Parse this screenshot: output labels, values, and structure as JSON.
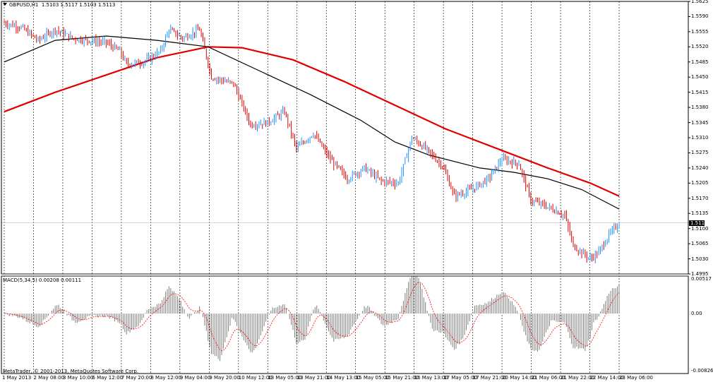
{
  "header": {
    "symbol": "GBPUSD,H1",
    "ohlc": "1.5103 1.5117 1.5103 1.5113"
  },
  "current_price": "1.5113",
  "price_axis": [
    "1.5625",
    "1.5590",
    "1.5555",
    "1.5520",
    "1.5485",
    "1.5450",
    "1.5415",
    "1.5380",
    "1.5345",
    "1.5310",
    "1.5275",
    "1.5240",
    "1.5205",
    "1.5170",
    "1.5135",
    "1.5100",
    "1.5065",
    "1.5030",
    "1.4995"
  ],
  "time_axis": [
    "1 May 2013",
    "2 May 08:00",
    "3 May 10:00",
    "6 May 12:00",
    "7 May 20:00",
    "8 May 12:00",
    "9 May 04:00",
    "9 May 20:00",
    "10 May 12:00",
    "13 May 05:00",
    "13 May 21:00",
    "14 May 13:00",
    "15 May 05:00",
    "15 May 21:00",
    "16 May 13:00",
    "17 May 05:00",
    "17 May 21:00",
    "20 May 14:00",
    "21 May 06:00",
    "21 May 22:00",
    "22 May 14:00",
    "23 May 06:00"
  ],
  "indicator": {
    "label": "MACD(5,34,5) 0.00208 0.00111",
    "axis": [
      "0.00517",
      "0.00",
      "-0.00826"
    ]
  },
  "copyright": "MetaTrader, © 2001-2013, MetaQuotes Software Corp.",
  "colors": {
    "bull_candle": "#1e90ff",
    "bear_candle": "#e00000",
    "ma_fast": "#000000",
    "ma_slow": "#e00000",
    "macd_hist": "#808080",
    "macd_signal": "#ff0000",
    "grid": "#000000"
  },
  "chart_data": {
    "type": "line",
    "title": "GBPUSD,H1",
    "price_range": [
      1.4995,
      1.5625
    ],
    "anchors": [
      {
        "t": 0,
        "p": 1.5575
      },
      {
        "t": 10,
        "p": 1.5565
      },
      {
        "t": 20,
        "p": 1.5535
      },
      {
        "t": 30,
        "p": 1.556
      },
      {
        "t": 40,
        "p": 1.554
      },
      {
        "t": 50,
        "p": 1.5535
      },
      {
        "t": 60,
        "p": 1.553
      },
      {
        "t": 68,
        "p": 1.551
      },
      {
        "t": 72,
        "p": 1.548
      },
      {
        "t": 82,
        "p": 1.5485
      },
      {
        "t": 92,
        "p": 1.551
      },
      {
        "t": 97,
        "p": 1.556
      },
      {
        "t": 105,
        "p": 1.554
      },
      {
        "t": 115,
        "p": 1.556
      },
      {
        "t": 122,
        "p": 1.545
      },
      {
        "t": 135,
        "p": 1.5435
      },
      {
        "t": 145,
        "p": 1.534
      },
      {
        "t": 155,
        "p": 1.5345
      },
      {
        "t": 165,
        "p": 1.537
      },
      {
        "t": 172,
        "p": 1.5285
      },
      {
        "t": 182,
        "p": 1.532
      },
      {
        "t": 192,
        "p": 1.526
      },
      {
        "t": 202,
        "p": 1.5215
      },
      {
        "t": 212,
        "p": 1.524
      },
      {
        "t": 222,
        "p": 1.521
      },
      {
        "t": 232,
        "p": 1.5205
      },
      {
        "t": 240,
        "p": 1.531
      },
      {
        "t": 248,
        "p": 1.5285
      },
      {
        "t": 258,
        "p": 1.5245
      },
      {
        "t": 265,
        "p": 1.5175
      },
      {
        "t": 275,
        "p": 1.519
      },
      {
        "t": 285,
        "p": 1.5215
      },
      {
        "t": 293,
        "p": 1.526
      },
      {
        "t": 303,
        "p": 1.525
      },
      {
        "t": 310,
        "p": 1.5165
      },
      {
        "t": 320,
        "p": 1.515
      },
      {
        "t": 330,
        "p": 1.513
      },
      {
        "t": 335,
        "p": 1.506
      },
      {
        "t": 345,
        "p": 1.503
      },
      {
        "t": 350,
        "p": 1.5045
      },
      {
        "t": 356,
        "p": 1.5085
      },
      {
        "t": 362,
        "p": 1.5113
      }
    ],
    "ma_fast_points": [
      [
        0,
        1.5485
      ],
      [
        30,
        1.5535
      ],
      [
        60,
        1.5545
      ],
      [
        90,
        1.5535
      ],
      [
        120,
        1.552
      ],
      [
        150,
        1.5465
      ],
      [
        180,
        1.541
      ],
      [
        210,
        1.535
      ],
      [
        230,
        1.53
      ],
      [
        250,
        1.527
      ],
      [
        280,
        1.524
      ],
      [
        300,
        1.523
      ],
      [
        320,
        1.5215
      ],
      [
        340,
        1.519
      ],
      [
        362,
        1.5145
      ]
    ],
    "ma_slow_points": [
      [
        0,
        1.537
      ],
      [
        30,
        1.5415
      ],
      [
        60,
        1.5455
      ],
      [
        90,
        1.5495
      ],
      [
        120,
        1.552
      ],
      [
        140,
        1.5518
      ],
      [
        170,
        1.549
      ],
      [
        200,
        1.544
      ],
      [
        230,
        1.5385
      ],
      [
        260,
        1.533
      ],
      [
        290,
        1.5285
      ],
      [
        320,
        1.524
      ],
      [
        345,
        1.5205
      ],
      [
        362,
        1.5175
      ]
    ],
    "macd_range": [
      -0.00826,
      0.00517
    ]
  }
}
